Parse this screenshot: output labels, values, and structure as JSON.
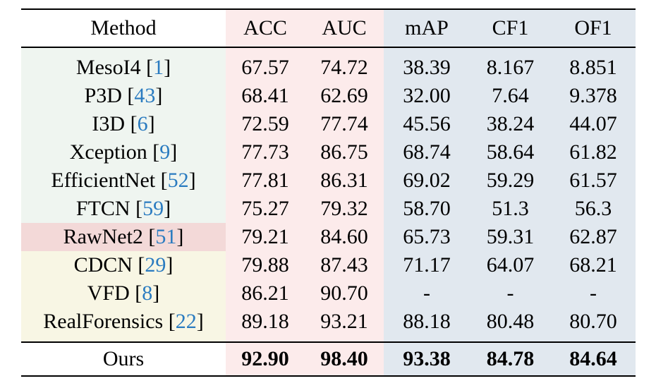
{
  "columns": [
    "Method",
    "ACC",
    "AUC",
    "mAP",
    "CF1",
    "OF1"
  ],
  "rows": [
    {
      "name": "MesoI4",
      "ref": "1",
      "values": [
        "67.57",
        "74.72",
        "38.39",
        "8.167",
        "8.851"
      ]
    },
    {
      "name": "P3D",
      "ref": "43",
      "values": [
        "68.41",
        "62.69",
        "32.00",
        "7.64",
        "9.378"
      ]
    },
    {
      "name": "I3D",
      "ref": "6",
      "values": [
        "72.59",
        "77.74",
        "45.56",
        "38.24",
        "44.07"
      ]
    },
    {
      "name": "Xception",
      "ref": "9",
      "values": [
        "77.73",
        "86.75",
        "68.74",
        "58.64",
        "61.82"
      ]
    },
    {
      "name": "EfficientNet",
      "ref": "52",
      "values": [
        "77.81",
        "86.31",
        "69.02",
        "59.29",
        "61.57"
      ]
    },
    {
      "name": "FTCN",
      "ref": "59",
      "values": [
        "75.27",
        "79.32",
        "58.70",
        "51.3",
        "56.3"
      ]
    },
    {
      "name": "RawNet2",
      "ref": "51",
      "values": [
        "79.21",
        "84.60",
        "65.73",
        "59.31",
        "62.87"
      ]
    },
    {
      "name": "CDCN",
      "ref": "29",
      "values": [
        "79.88",
        "87.43",
        "71.17",
        "64.07",
        "68.21"
      ]
    },
    {
      "name": "VFD",
      "ref": "8",
      "values": [
        "86.21",
        "90.70",
        "-",
        "-",
        "-"
      ]
    },
    {
      "name": "RealForensics",
      "ref": "22",
      "values": [
        "89.18",
        "93.21",
        "88.18",
        "80.48",
        "80.70"
      ]
    }
  ],
  "ours": {
    "name": "Ours",
    "values": [
      "92.90",
      "98.40",
      "93.38",
      "84.78",
      "84.64"
    ]
  },
  "colors": {
    "header_pink": "#fcebeb",
    "header_blue": "#e1e8ef",
    "method_green": "#eff5f0",
    "method_red": "#f3d9d8",
    "method_yellow": "#f8f6e4",
    "reference_link": "#2a7bc0"
  }
}
